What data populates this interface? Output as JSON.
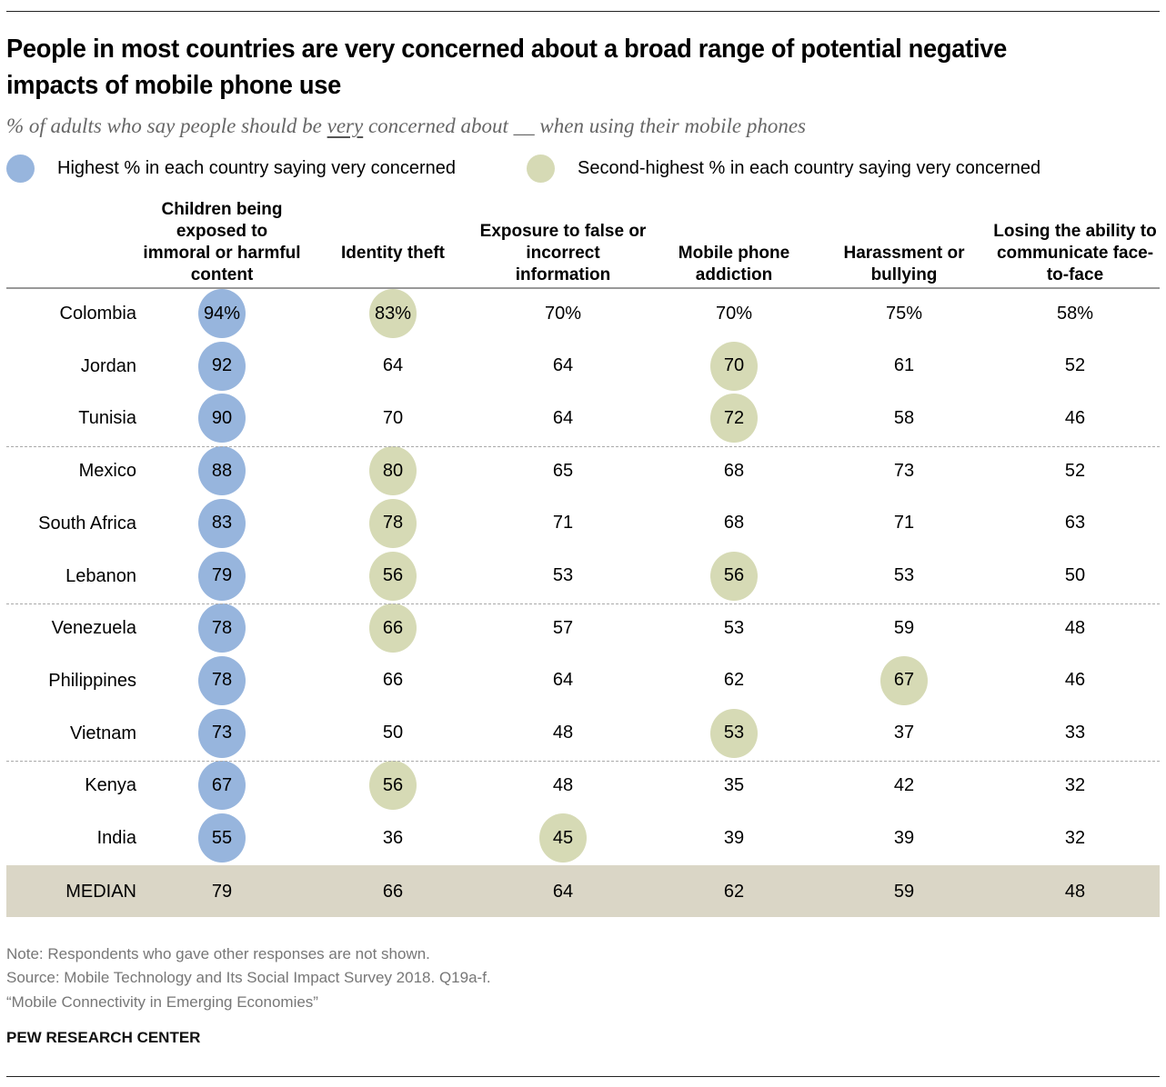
{
  "title": "People in most countries are very concerned about a broad range of potential negative impacts of mobile phone use",
  "subtitle": {
    "before": "% of adults who say people should be ",
    "emphasis": "very",
    "after": " concerned about __ when using their mobile phones"
  },
  "colors": {
    "highest": "#97B5DD",
    "second_highest": "#D6DAB5",
    "median_band": "#DAD6C6"
  },
  "legend": [
    {
      "key": "highest",
      "label": "Highest % in each country saying very concerned"
    },
    {
      "key": "second_highest",
      "label": "Second-highest % in each country saying very concerned"
    }
  ],
  "columns": [
    {
      "label": "Children being exposed to immoral or harmful content"
    },
    {
      "label": "Identity theft"
    },
    {
      "label": "Exposure to false or incorrect information"
    },
    {
      "label": "Mobile phone addiction"
    },
    {
      "label": "Harassment or bullying"
    },
    {
      "label": "Losing the ability to communicate face-to-face"
    }
  ],
  "chart_data": {
    "type": "table",
    "title": "People in most countries are very concerned about a broad range of potential negative impacts of mobile phone use",
    "subtitle": "% of adults who say people should be very concerned about __ when using their mobile phones",
    "unit": "%",
    "columns": [
      "Children being exposed to immoral or harmful content",
      "Identity theft",
      "Exposure to false or incorrect information",
      "Mobile phone addiction",
      "Harassment or bullying",
      "Losing the ability to communicate face-to-face"
    ],
    "rows": [
      {
        "country": "Colombia",
        "values": [
          94,
          83,
          70,
          70,
          75,
          58
        ],
        "highest": 0,
        "second": [
          1
        ],
        "show_percent": true
      },
      {
        "country": "Jordan",
        "values": [
          92,
          64,
          64,
          70,
          61,
          52
        ],
        "highest": 0,
        "second": [
          3
        ]
      },
      {
        "country": "Tunisia",
        "values": [
          90,
          70,
          64,
          72,
          58,
          46
        ],
        "highest": 0,
        "second": [
          3
        ]
      },
      {
        "country": "Mexico",
        "values": [
          88,
          80,
          65,
          68,
          73,
          52
        ],
        "highest": 0,
        "second": [
          1
        ]
      },
      {
        "country": "South Africa",
        "values": [
          83,
          78,
          71,
          68,
          71,
          63
        ],
        "highest": 0,
        "second": [
          1
        ]
      },
      {
        "country": "Lebanon",
        "values": [
          79,
          56,
          53,
          56,
          53,
          50
        ],
        "highest": 0,
        "second": [
          1,
          3
        ]
      },
      {
        "country": "Venezuela",
        "values": [
          78,
          66,
          57,
          53,
          59,
          48
        ],
        "highest": 0,
        "second": [
          1
        ]
      },
      {
        "country": "Philippines",
        "values": [
          78,
          66,
          64,
          62,
          67,
          46
        ],
        "highest": 0,
        "second": [
          4
        ]
      },
      {
        "country": "Vietnam",
        "values": [
          73,
          50,
          48,
          53,
          37,
          33
        ],
        "highest": 0,
        "second": [
          3
        ]
      },
      {
        "country": "Kenya",
        "values": [
          67,
          56,
          48,
          35,
          42,
          32
        ],
        "highest": 0,
        "second": [
          1
        ]
      },
      {
        "country": "India",
        "values": [
          55,
          36,
          45,
          39,
          39,
          32
        ],
        "highest": 0,
        "second": [
          2
        ]
      }
    ],
    "groups_after_rows": [
      2,
      5,
      8
    ],
    "median": {
      "label": "MEDIAN",
      "values": [
        79,
        66,
        64,
        62,
        59,
        48
      ]
    }
  },
  "footer": {
    "note": "Note: Respondents who gave other responses are not shown.",
    "source": "Source: Mobile Technology and Its Social Impact Survey 2018. Q19a-f.",
    "report": "“Mobile Connectivity in Emerging Economies”",
    "brand": "PEW RESEARCH CENTER"
  }
}
